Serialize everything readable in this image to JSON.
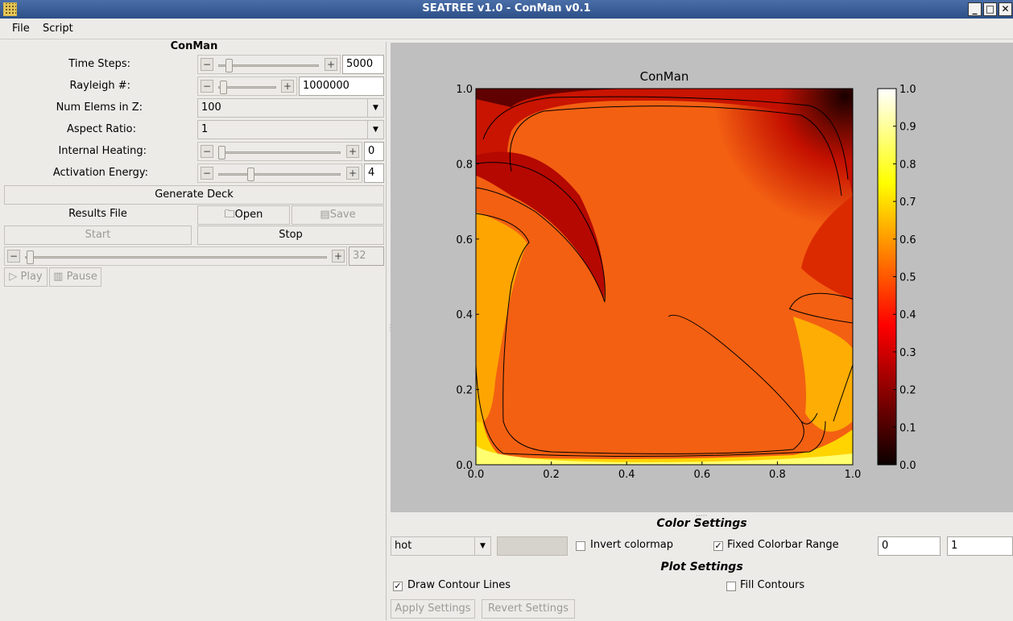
{
  "window": {
    "title": "SEATREE v1.0 - ConMan v0.1"
  },
  "menu": {
    "file": "File",
    "script": "Script"
  },
  "panel": {
    "title": "ConMan",
    "time_steps": {
      "label": "Time Steps:",
      "value": "5000",
      "level": 0.1
    },
    "rayleigh": {
      "label": "Rayleigh #:",
      "value": "1000000",
      "level": 0.05
    },
    "num_elems": {
      "label": "Num Elems in Z:",
      "value": "100"
    },
    "aspect_ratio": {
      "label": "Aspect Ratio:",
      "value": "1"
    },
    "internal_heating": {
      "label": "Internal Heating:",
      "value": "0",
      "level": 0.0
    },
    "activation_energy": {
      "label": "Activation Energy:",
      "value": "4",
      "level": 0.27
    },
    "generate_deck": "Generate Deck",
    "results_file": "Results File",
    "open": "Open",
    "save": "Save",
    "start": "Start",
    "stop": "Stop",
    "frame": {
      "value": "32",
      "level": 0.0
    },
    "play": "Play",
    "pause": "Pause"
  },
  "chart_data": {
    "type": "heatmap",
    "title": "ConMan",
    "colormap": "hot",
    "xlim": [
      0.0,
      1.0
    ],
    "ylim": [
      0.0,
      1.0
    ],
    "x_ticks": [
      "0.0",
      "0.2",
      "0.4",
      "0.6",
      "0.8",
      "1.0"
    ],
    "y_ticks": [
      "0.0",
      "0.2",
      "0.4",
      "0.6",
      "0.8",
      "1.0"
    ],
    "colorbar_range": [
      0.0,
      1.0
    ],
    "colorbar_ticks": [
      "0.0",
      "0.1",
      "0.2",
      "0.3",
      "0.4",
      "0.5",
      "0.6",
      "0.7",
      "0.8",
      "0.9",
      "1.0"
    ],
    "contours": true
  },
  "color_settings": {
    "title": "Color Settings",
    "colormap_value": "hot",
    "invert_label": "Invert colormap",
    "invert_checked": false,
    "fixed_range_label": "Fixed Colorbar Range",
    "fixed_range_checked": true,
    "range_min": "0",
    "range_max": "1"
  },
  "plot_settings": {
    "title": "Plot Settings",
    "contour_lines_label": "Draw Contour Lines",
    "contour_lines_checked": true,
    "fill_contours_label": "Fill Contours",
    "fill_contours_checked": false,
    "apply": "Apply Settings",
    "revert": "Revert Settings"
  },
  "colors": {
    "accent": "#2c4f87",
    "plot_bg": "#bfbfbf"
  }
}
